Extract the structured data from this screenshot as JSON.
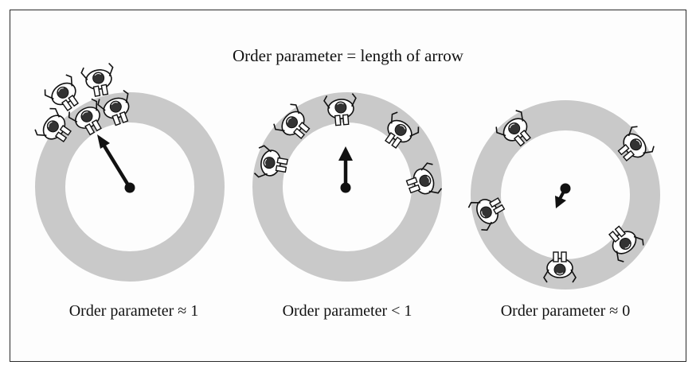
{
  "title": "Order parameter = length of arrow",
  "panels": [
    {
      "caption": "Order parameter ≈ 1"
    },
    {
      "caption": "Order parameter <  1"
    },
    {
      "caption": "Order parameter ≈ 0"
    }
  ],
  "colors": {
    "ring": "#c9c9c9",
    "ink": "#111111",
    "frame": "#2a2a2a"
  },
  "icons": [
    "walker-icon",
    "arrow-icon"
  ]
}
